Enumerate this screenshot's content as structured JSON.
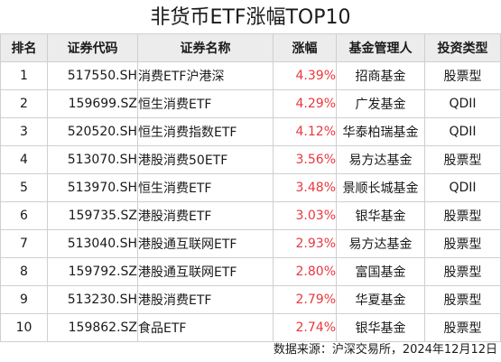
{
  "title": "非货币ETF涨幅TOP10",
  "table": {
    "headers": [
      "排名",
      "证券代码",
      "证券名称",
      "涨幅",
      "基金管理人",
      "投资类型"
    ],
    "rows": [
      {
        "rank": "1",
        "code": "517550.SH",
        "name": "消费ETF沪港深",
        "change": "4.39%",
        "manager": "招商基金",
        "type": "股票型"
      },
      {
        "rank": "2",
        "code": "159699.SZ",
        "name": "恒生消费ETF",
        "change": "4.29%",
        "manager": "广发基金",
        "type": "QDII"
      },
      {
        "rank": "3",
        "code": "520520.SH",
        "name": "恒生消费指数ETF",
        "change": "4.12%",
        "manager": "华泰柏瑞基金",
        "type": "QDII"
      },
      {
        "rank": "4",
        "code": "513070.SH",
        "name": "港股消费50ETF",
        "change": "3.56%",
        "manager": "易方达基金",
        "type": "股票型"
      },
      {
        "rank": "5",
        "code": "513970.SH",
        "name": "恒生消费ETF",
        "change": "3.48%",
        "manager": "景顺长城基金",
        "type": "QDII"
      },
      {
        "rank": "6",
        "code": "159735.SZ",
        "name": "港股消费ETF",
        "change": "3.03%",
        "manager": "银华基金",
        "type": "股票型"
      },
      {
        "rank": "7",
        "code": "513040.SH",
        "name": "港股通互联网ETF",
        "change": "2.93%",
        "manager": "易方达基金",
        "type": "股票型"
      },
      {
        "rank": "8",
        "code": "159792.SZ",
        "name": "港股通互联网ETF",
        "change": "2.80%",
        "manager": "富国基金",
        "type": "股票型"
      },
      {
        "rank": "9",
        "code": "513230.SH",
        "name": "港股消费ETF",
        "change": "2.79%",
        "manager": "华夏基金",
        "type": "股票型"
      },
      {
        "rank": "10",
        "code": "159862.SZ",
        "name": "食品ETF",
        "change": "2.74%",
        "manager": "银华基金",
        "type": "股票型"
      }
    ]
  },
  "source": "数据来源：沪深交易所，2024年12月12日",
  "colors": {
    "header_bg": "#ececec",
    "border": "#cfcfcf",
    "positive_change": "#e8383d"
  }
}
